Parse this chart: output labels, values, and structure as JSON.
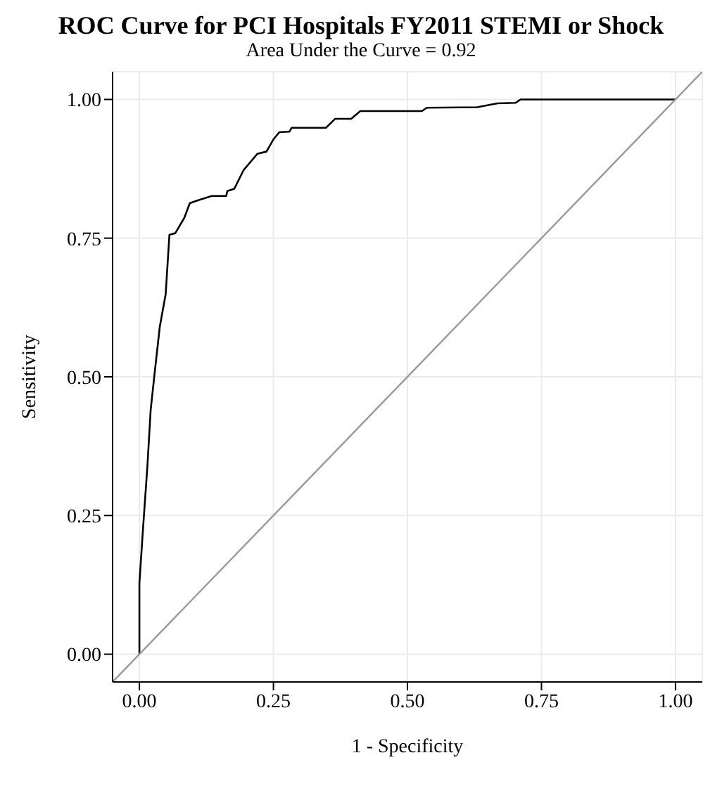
{
  "chart_data": {
    "type": "line",
    "title": "ROC Curve for PCI Hospitals FY2011 STEMI or Shock",
    "subtitle": "Area Under the Curve = 0.92",
    "xlabel": "1 - Specificity",
    "ylabel": "Sensitivity",
    "xlim": [
      -0.05,
      1.05
    ],
    "ylim": [
      -0.05,
      1.05
    ],
    "xticks": [
      {
        "value": 0,
        "label": "0.00"
      },
      {
        "value": 0.25,
        "label": "0.25"
      },
      {
        "value": 0.5,
        "label": "0.50"
      },
      {
        "value": 0.75,
        "label": "0.75"
      },
      {
        "value": 1,
        "label": "1.00"
      }
    ],
    "yticks": [
      {
        "value": 0,
        "label": "0.00"
      },
      {
        "value": 0.25,
        "label": "0.25"
      },
      {
        "value": 0.5,
        "label": "0.50"
      },
      {
        "value": 0.75,
        "label": "0.75"
      },
      {
        "value": 1,
        "label": "1.00"
      }
    ],
    "grid": true,
    "legend": false,
    "marker": "none",
    "line_style": "solid",
    "series": [
      {
        "color": "#000000",
        "x": [
          0,
          0,
          0.007,
          0.015,
          0.021,
          0.028,
          0.038,
          0.049,
          0.056,
          0.067,
          0.084,
          0.094,
          0.109,
          0.135,
          0.162,
          0.164,
          0.177,
          0.194,
          0.22,
          0.237,
          0.25,
          0.261,
          0.28,
          0.284,
          0.348,
          0.365,
          0.395,
          0.412,
          0.45,
          0.527,
          0.536,
          0.63,
          0.668,
          0.702,
          0.711,
          1
        ],
        "values": [
          0,
          0.128,
          0.23,
          0.34,
          0.44,
          0.503,
          0.59,
          0.649,
          0.756,
          0.759,
          0.787,
          0.813,
          0.818,
          0.826,
          0.826,
          0.835,
          0.839,
          0.872,
          0.902,
          0.906,
          0.928,
          0.941,
          0.942,
          0.949,
          0.949,
          0.965,
          0.965,
          0.979,
          0.979,
          0.979,
          0.985,
          0.986,
          0.993,
          0.994,
          1,
          1
        ]
      },
      {
        "color": "#999999",
        "x": [
          -0.05,
          1.05
        ],
        "values": [
          -0.05,
          1.05
        ]
      }
    ]
  }
}
